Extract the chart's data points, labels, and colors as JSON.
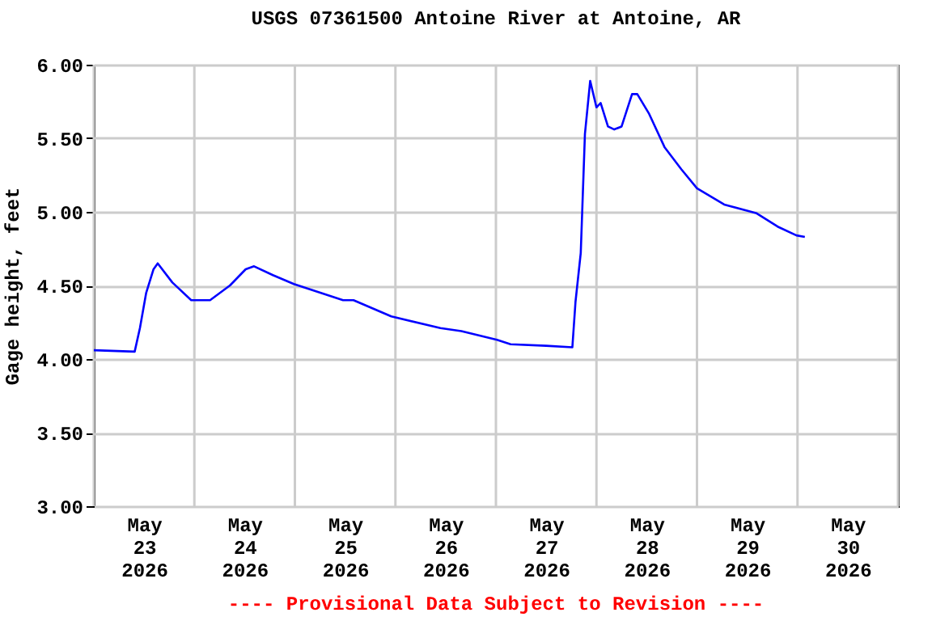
{
  "chart_data": {
    "type": "line",
    "title": "USGS 07361500 Antoine River at Antoine, AR",
    "ylabel": "Gage height, feet",
    "annotations": [
      "---- Provisional Data Subject to Revision ----"
    ],
    "x": [
      "2026-05-23T00:00",
      "2026-05-23T09:45",
      "2026-05-23T11:00",
      "2026-05-23T12:30",
      "2026-05-23T14:15",
      "2026-05-23T15:15",
      "2026-05-23T18:45",
      "2026-05-23T23:15",
      "2026-05-24T03:45",
      "2026-05-24T08:30",
      "2026-05-24T12:15",
      "2026-05-24T14:15",
      "2026-05-24T18:45",
      "2026-05-24T23:45",
      "2026-05-25T11:30",
      "2026-05-25T14:00",
      "2026-05-25T23:00",
      "2026-05-26T10:45",
      "2026-05-26T15:45",
      "2026-05-27T00:15",
      "2026-05-27T03:30",
      "2026-05-27T12:00",
      "2026-05-27T18:15",
      "2026-05-27T19:00",
      "2026-05-27T20:15",
      "2026-05-27T21:15",
      "2026-05-27T22:30",
      "2026-05-28T00:00",
      "2026-05-28T01:00",
      "2026-05-28T02:45",
      "2026-05-28T04:15",
      "2026-05-28T06:00",
      "2026-05-28T08:30",
      "2026-05-28T09:45",
      "2026-05-28T12:30",
      "2026-05-28T16:15",
      "2026-05-28T20:15",
      "2026-05-29T00:00",
      "2026-05-29T06:30",
      "2026-05-29T14:15",
      "2026-05-29T19:15",
      "2026-05-29T23:45",
      "2026-05-30T01:45"
    ],
    "series": [
      {
        "color": "#0000ff",
        "values": [
          4.06,
          4.05,
          4.21,
          4.45,
          4.61,
          4.65,
          4.52,
          4.4,
          4.4,
          4.5,
          4.61,
          4.63,
          4.57,
          4.51,
          4.4,
          4.4,
          4.29,
          4.21,
          4.19,
          4.13,
          4.1,
          4.09,
          4.08,
          4.39,
          4.72,
          5.53,
          5.89,
          5.71,
          5.74,
          5.58,
          5.56,
          5.58,
          5.8,
          5.8,
          5.67,
          5.44,
          5.29,
          5.16,
          5.05,
          4.99,
          4.9,
          4.84,
          4.83
        ]
      }
    ],
    "xlim": [
      "2026-05-23T00:00",
      "2026-05-31T00:00"
    ],
    "xticks": [
      {
        "value": "2026-05-23T00:00",
        "label": null
      },
      {
        "value": "2026-05-24T00:00",
        "label": null
      },
      {
        "value": "2026-05-25T00:00",
        "label": null
      },
      {
        "value": "2026-05-26T00:00",
        "label": null
      },
      {
        "value": "2026-05-27T00:00",
        "label": null
      },
      {
        "value": "2026-05-28T00:00",
        "label": null
      },
      {
        "value": "2026-05-29T00:00",
        "label": null
      },
      {
        "value": "2026-05-30T00:00",
        "label": null
      },
      {
        "value": "2026-05-31T00:00",
        "label": null
      },
      {
        "value": "2026-05-23T12:00",
        "label": "May\n23\n2026"
      },
      {
        "value": "2026-05-24T12:00",
        "label": "May\n24\n2026"
      },
      {
        "value": "2026-05-25T12:00",
        "label": "May\n25\n2026"
      },
      {
        "value": "2026-05-26T12:00",
        "label": "May\n26\n2026"
      },
      {
        "value": "2026-05-27T12:00",
        "label": "May\n27\n2026"
      },
      {
        "value": "2026-05-28T12:00",
        "label": "May\n28\n2026"
      },
      {
        "value": "2026-05-29T12:00",
        "label": "May\n29\n2026"
      },
      {
        "value": "2026-05-30T12:00",
        "label": "May\n30\n2026"
      }
    ],
    "ylim": [
      3,
      6
    ],
    "yticks": [
      {
        "value": 3,
        "label": "3.00"
      },
      {
        "value": 3.5,
        "label": "3.50"
      },
      {
        "value": 4,
        "label": "4.00"
      },
      {
        "value": 4.5,
        "label": "4.50"
      },
      {
        "value": 5,
        "label": "5.00"
      },
      {
        "value": 5.5,
        "label": "5.50"
      },
      {
        "value": 6,
        "label": "6.00"
      }
    ],
    "grid": true
  }
}
